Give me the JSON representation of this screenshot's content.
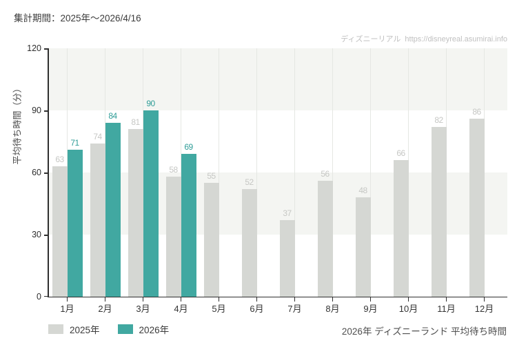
{
  "header": {
    "title": "集計期間：2025年～2026/4/16",
    "watermark_site": "ディズニーリアル",
    "watermark_url": "https://disneyreal.asumirai.info"
  },
  "chart_data": {
    "type": "bar",
    "ylabel": "平均待ち時間（分）",
    "xlabel": "",
    "ylim": [
      0,
      120
    ],
    "yticks": [
      0,
      30,
      60,
      90,
      120
    ],
    "categories": [
      "1月",
      "2月",
      "3月",
      "4月",
      "5月",
      "6月",
      "7月",
      "8月",
      "9月",
      "10月",
      "11月",
      "12月"
    ],
    "series": [
      {
        "name": "2025年",
        "color": "#d5d7d3",
        "label_color": "#c6c7c4",
        "values": [
          63,
          74,
          81,
          58,
          55,
          52,
          37,
          56,
          48,
          66,
          82,
          86
        ]
      },
      {
        "name": "2026年",
        "color": "#41a8a1",
        "label_color": "#2f9d97",
        "values": [
          71,
          84,
          90,
          69,
          null,
          null,
          null,
          null,
          null,
          null,
          null,
          null
        ]
      }
    ],
    "band_color": "#f4f5f2",
    "gridlines": "vertical-at-category-centers",
    "legend_position": "bottom-left"
  },
  "footer": {
    "caption": "2026年 ディズニーランド 平均待ち時間"
  }
}
